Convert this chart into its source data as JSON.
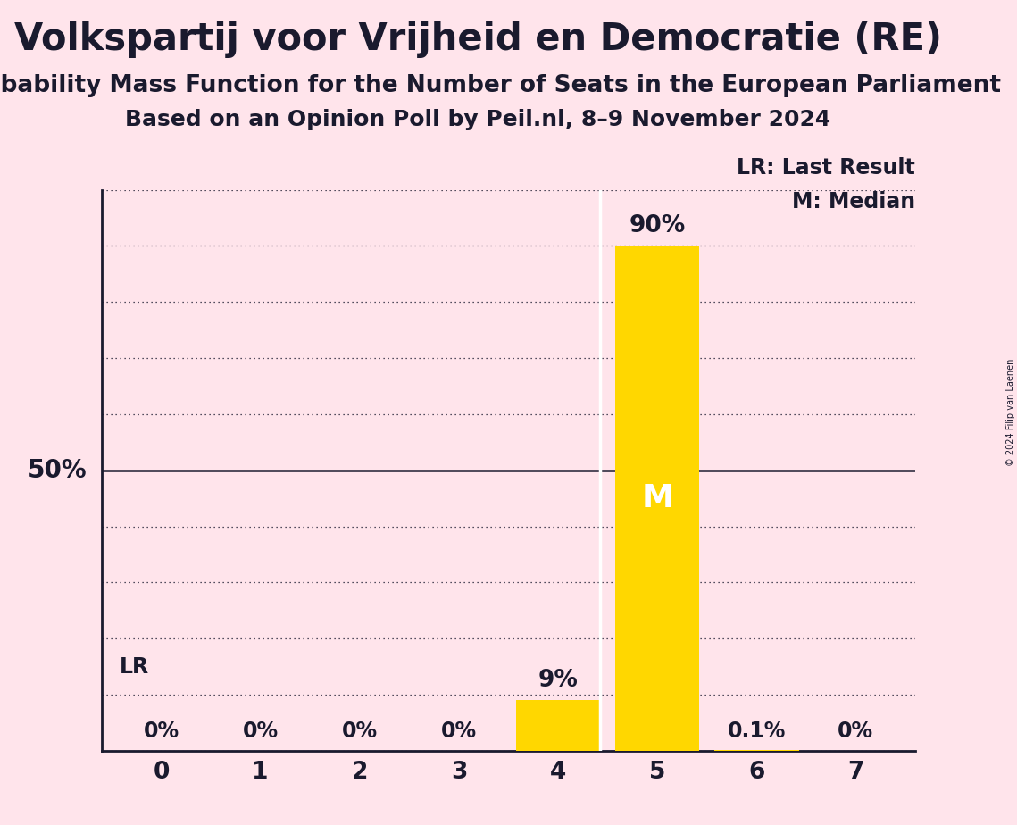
{
  "title": "Volkspartij voor Vrijheid en Democratie (RE)",
  "subtitle1": "Probability Mass Function for the Number of Seats in the European Parliament",
  "subtitle2": "Based on an Opinion Poll by Peil.nl, 8–9 November 2024",
  "copyright": "© 2024 Filip van Laenen",
  "seats": [
    0,
    1,
    2,
    3,
    4,
    5,
    6,
    7
  ],
  "probabilities": [
    0.0,
    0.0,
    0.0,
    0.0,
    9.0,
    90.0,
    0.1,
    0.0
  ],
  "bar_color": "#FFD700",
  "median_seat": 5,
  "last_result_seat": 4,
  "background_color": "#FFE4EB",
  "median_label_color": "#FFFFFF",
  "text_color": "#1a1a2e",
  "ylim": [
    0,
    100
  ],
  "gridline_color": "#1a1a2e",
  "legend_lr": "LR: Last Result",
  "legend_m": "M: Median",
  "title_fontsize": 30,
  "subtitle1_fontsize": 19,
  "subtitle2_fontsize": 18,
  "bar_label_fontsize": 17,
  "bar_label_large_fontsize": 19,
  "tick_fontsize": 19,
  "ylabel50_fontsize": 20,
  "legend_fontsize": 17,
  "lr_label_fontsize": 17
}
